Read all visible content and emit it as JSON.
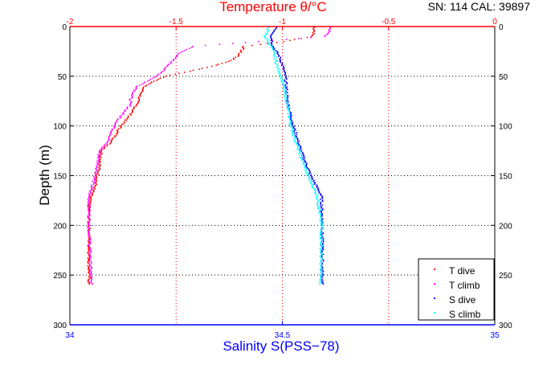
{
  "chart_data": {
    "type": "scatter",
    "title": "Temperature θ/°C",
    "subtitle": "SN: 114  CAL: 39897",
    "ylabel": "Depth (m)",
    "xlabel": "Salinity S(PSS−78)",
    "top_axis": {
      "label": "Temperature θ/°C",
      "range": [
        -2,
        0
      ],
      "ticks": [
        -2,
        -1.5,
        -1,
        -0.5,
        0
      ],
      "tick_labels": [
        "-2",
        "-1.5",
        "-1",
        "-0.5",
        "0"
      ],
      "color": "#ff0000"
    },
    "bottom_axis": {
      "label": "Salinity S(PSS−78)",
      "range": [
        34,
        35
      ],
      "ticks": [
        34,
        34.5,
        35
      ],
      "tick_labels": [
        "34",
        "34.5",
        "35"
      ],
      "color": "#0000ff"
    },
    "y_axis": {
      "range": [
        0,
        300
      ],
      "reversed": true,
      "ticks": [
        0,
        50,
        100,
        150,
        200,
        250,
        300
      ],
      "tick_labels": [
        "0",
        "50",
        "100",
        "150",
        "200",
        "250",
        "300"
      ]
    },
    "grid": true,
    "legend": {
      "placement": "bottom-right",
      "entries": [
        "T dive",
        "T climb",
        "S dive",
        "S climb"
      ]
    },
    "series": [
      {
        "name": "T dive",
        "axis": "temperature",
        "color": "#ff0000",
        "depth": [
          0,
          5,
          10,
          15,
          20,
          30,
          35,
          40,
          46,
          50,
          60,
          70,
          80,
          90,
          100,
          115,
          125,
          140,
          150,
          160,
          170,
          180,
          200,
          260
        ],
        "values": [
          -0.85,
          -0.85,
          -0.86,
          -0.99,
          -1.18,
          -1.21,
          -1.25,
          -1.33,
          -1.46,
          -1.55,
          -1.65,
          -1.67,
          -1.69,
          -1.72,
          -1.76,
          -1.8,
          -1.85,
          -1.86,
          -1.87,
          -1.88,
          -1.9,
          -1.91,
          -1.91,
          -1.91
        ]
      },
      {
        "name": "T climb",
        "axis": "temperature",
        "color": "#ff00ff",
        "depth": [
          0,
          5,
          10,
          20,
          25,
          30,
          40,
          50,
          60,
          70,
          80,
          90,
          100,
          115,
          125,
          140,
          150,
          170,
          200,
          260
        ],
        "values": [
          -0.77,
          -0.78,
          -0.8,
          -1.42,
          -1.47,
          -1.5,
          -1.54,
          -1.59,
          -1.68,
          -1.71,
          -1.72,
          -1.76,
          -1.79,
          -1.82,
          -1.86,
          -1.87,
          -1.88,
          -1.91,
          -1.91,
          -1.9
        ]
      },
      {
        "name": "S dive",
        "axis": "salinity",
        "color": "#0000ff",
        "depth": [
          0,
          10,
          20,
          30,
          40,
          50,
          75,
          100,
          125,
          150,
          170,
          200,
          260
        ],
        "values": [
          34.488,
          34.474,
          34.478,
          34.493,
          34.501,
          34.507,
          34.512,
          34.526,
          34.544,
          34.567,
          34.592,
          34.594,
          34.594
        ]
      },
      {
        "name": "S climb",
        "axis": "salinity",
        "color": "#00ffff",
        "depth": [
          0,
          10,
          20,
          30,
          40,
          50,
          75,
          100,
          125,
          150,
          170,
          200,
          260
        ],
        "values": [
          34.469,
          34.459,
          34.474,
          34.482,
          34.488,
          34.497,
          34.51,
          34.52,
          34.539,
          34.56,
          34.582,
          34.592,
          34.59
        ]
      }
    ]
  }
}
